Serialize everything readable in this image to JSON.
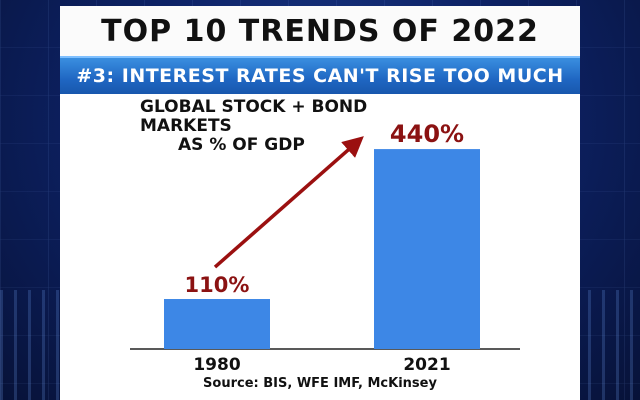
{
  "title": "TOP 10 TRENDS OF 2022",
  "subtitle": "#3: INTEREST RATES CAN'T RISE TOO MUCH",
  "source": "Source: BIS, WFE IMF, McKinsey",
  "colors": {
    "bar": "#3d87e6",
    "label": "#8b1212",
    "arrow": "#9b1010",
    "banner": "#1f66c2"
  },
  "chart_data": {
    "type": "bar",
    "title_lines": [
      "GLOBAL STOCK + BOND MARKETS",
      "AS % OF GDP"
    ],
    "categories": [
      "1980",
      "2021"
    ],
    "values": [
      110,
      440
    ],
    "data_labels": [
      "110%",
      "440%"
    ],
    "ylim": [
      0,
      460
    ],
    "xlabel": "",
    "ylabel": "",
    "grid": false,
    "annotations": [
      "arrow from 1980 bar to 2021 bar"
    ]
  }
}
